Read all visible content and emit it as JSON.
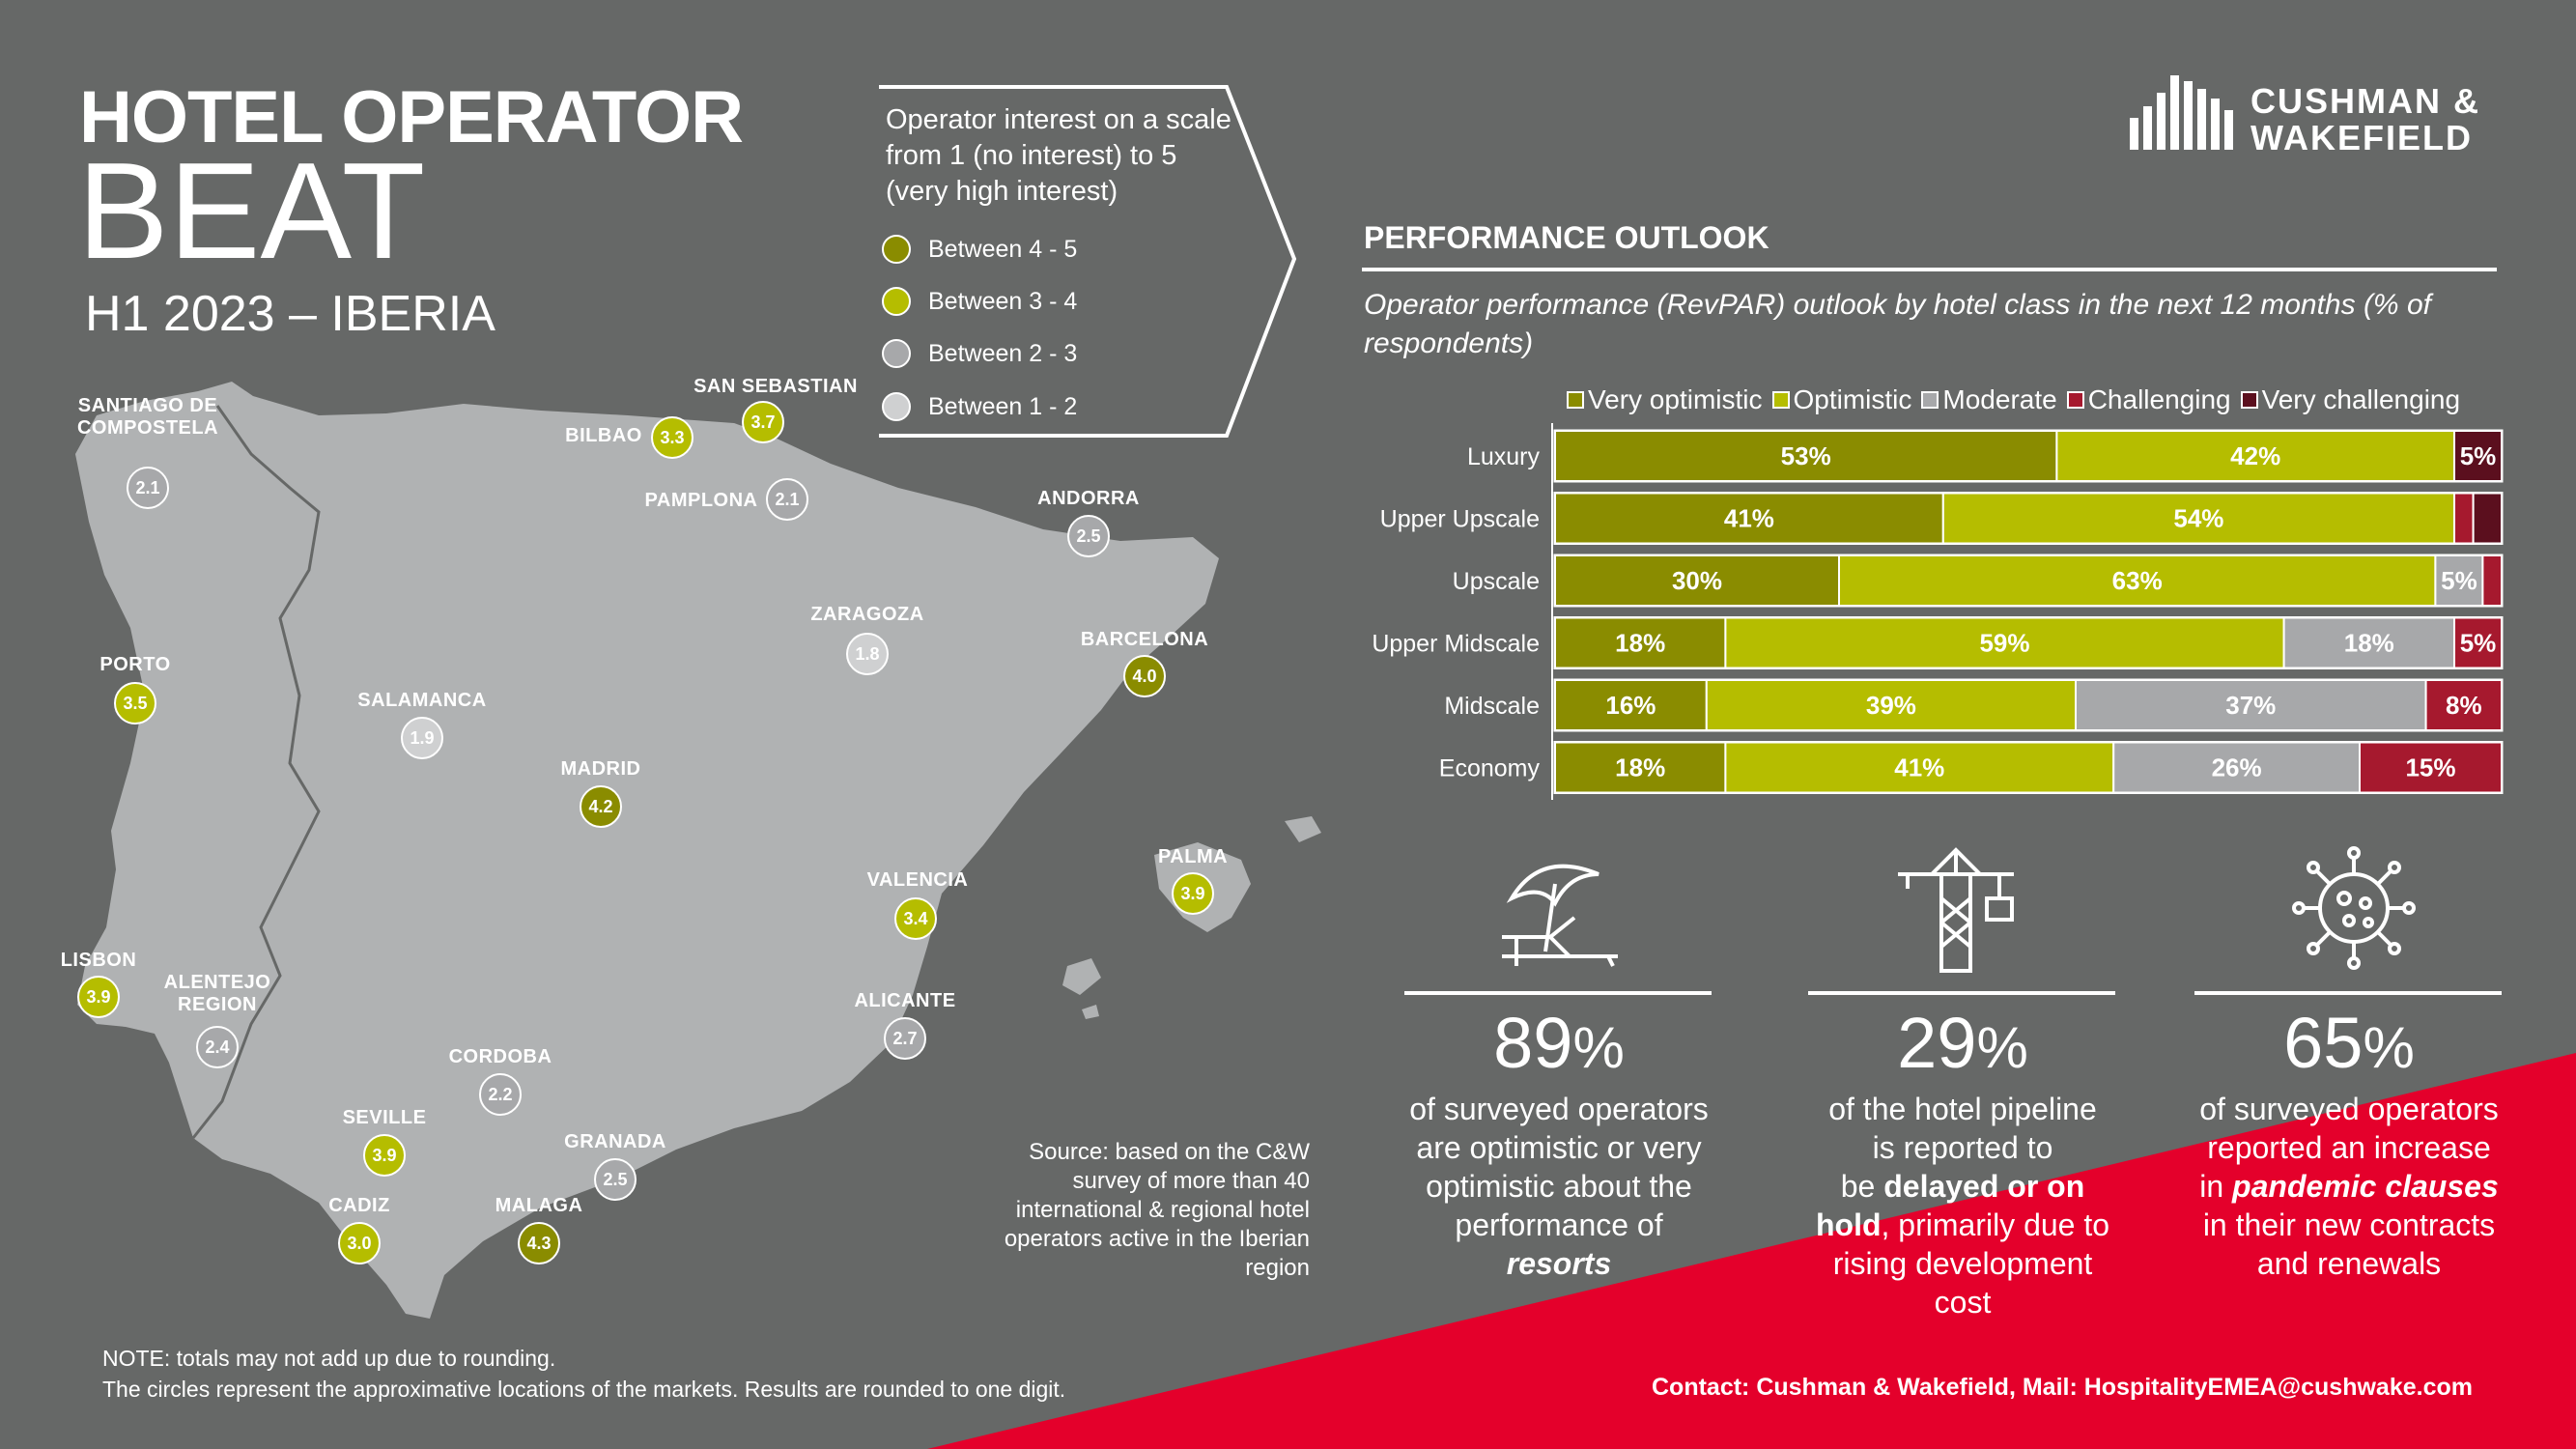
{
  "header": {
    "title_line1": "HOTEL OPERATOR",
    "title_line2": "BEAT",
    "title_line3": "H1 2023 – IBERIA"
  },
  "legend": {
    "intro": "Operator interest on a scale from 1 (no interest) to 5 (very high interest)",
    "items": [
      {
        "label": "Between 4 - 5",
        "color": "#8a8c00"
      },
      {
        "label": "Between 3 - 4",
        "color": "#b5bd00"
      },
      {
        "label": "Between 2 - 3",
        "color": "#a7a8aa"
      },
      {
        "label": "Between 1 - 2",
        "color": "#cfd0d1"
      }
    ]
  },
  "map": {
    "land_color": "#b0b2b3",
    "cities": [
      {
        "name": "SANTIAGO DE COMPOSTELA",
        "value": "2.1"
      },
      {
        "name": "BILBAO",
        "value": "3.3"
      },
      {
        "name": "SAN SEBASTIAN",
        "value": "3.7"
      },
      {
        "name": "PAMPLONA",
        "value": "2.1"
      },
      {
        "name": "ANDORRA",
        "value": "2.5"
      },
      {
        "name": "ZARAGOZA",
        "value": "1.8"
      },
      {
        "name": "BARCELONA",
        "value": "4.0"
      },
      {
        "name": "PORTO",
        "value": "3.5"
      },
      {
        "name": "SALAMANCA",
        "value": "1.9"
      },
      {
        "name": "MADRID",
        "value": "4.2"
      },
      {
        "name": "PALMA",
        "value": "3.9"
      },
      {
        "name": "VALENCIA",
        "value": "3.4"
      },
      {
        "name": "LISBON",
        "value": "3.9"
      },
      {
        "name": "ALENTEJO REGION",
        "value": "2.4"
      },
      {
        "name": "ALICANTE",
        "value": "2.7"
      },
      {
        "name": "CORDOBA",
        "value": "2.2"
      },
      {
        "name": "SEVILLE",
        "value": "3.9"
      },
      {
        "name": "GRANADA",
        "value": "2.5"
      },
      {
        "name": "CADIZ",
        "value": "3.0"
      },
      {
        "name": "MALAGA",
        "value": "4.3"
      }
    ]
  },
  "logo": {
    "line1": "CUSHMAN &",
    "line2": "WAKEFIELD"
  },
  "outlook": {
    "heading": "PERFORMANCE OUTLOOK",
    "subtitle": "Operator performance (RevPAR) outlook by hotel class in the next 12 months (% of respondents)"
  },
  "chart_data": {
    "type": "bar",
    "orientation": "horizontal",
    "stacked": true,
    "unit": "%",
    "categories": [
      "Luxury",
      "Upper Upscale",
      "Upscale",
      "Upper Midscale",
      "Midscale",
      "Economy"
    ],
    "series": [
      {
        "name": "Very optimistic",
        "color": "#8a8c00",
        "values": [
          53,
          41,
          30,
          18,
          16,
          18
        ]
      },
      {
        "name": "Optimistic",
        "color": "#b5bd00",
        "values": [
          42,
          54,
          63,
          59,
          39,
          41
        ]
      },
      {
        "name": "Moderate",
        "color": "#a7a8aa",
        "values": [
          0,
          0,
          5,
          18,
          37,
          26
        ]
      },
      {
        "name": "Challenging",
        "color": "#a6192e",
        "values": [
          0,
          2,
          2,
          5,
          8,
          15
        ]
      },
      {
        "name": "Very challenging",
        "color": "#5b0f1e",
        "values": [
          5,
          3,
          0,
          0,
          0,
          0
        ]
      }
    ],
    "data_labels": [
      [
        "53%",
        "42%",
        "",
        "",
        "5%"
      ],
      [
        "41%",
        "54%",
        "",
        "",
        ""
      ],
      [
        "30%",
        "63%",
        "5%",
        "",
        ""
      ],
      [
        "18%",
        "59%",
        "18%",
        "5%",
        ""
      ],
      [
        "16%",
        "39%",
        "37%",
        "8%",
        ""
      ],
      [
        "18%",
        "41%",
        "26%",
        "15%",
        ""
      ]
    ],
    "legend_position": "top",
    "grid": false
  },
  "stats": [
    {
      "number": "89",
      "pct": "%",
      "line1": "of surveyed operators",
      "line2": "are optimistic or very",
      "line3": "optimistic about the",
      "line4": "performance of",
      "line5": "resorts",
      "icon": "beach-umbrella-icon"
    },
    {
      "number": "29",
      "pct": "%",
      "line1": "of the hotel pipeline",
      "line2": "is reported to",
      "line3a": "be ",
      "line3b": "delayed or on",
      "line4a": "hold",
      "line4b": ", primarily due to",
      "line5": "rising development",
      "line6": "cost",
      "icon": "crane-icon"
    },
    {
      "number": "65",
      "pct": "%",
      "line1": "of surveyed operators",
      "line2": "reported an increase",
      "line3a": "in ",
      "line3b": "pandemic clauses",
      "line4": "in their new contracts",
      "line5": "and renewals",
      "icon": "virus-icon"
    }
  ],
  "footer": {
    "source": "Source: based on the C&W survey of more than 40 international & regional hotel operators active in the Iberian region",
    "note_line1": "NOTE: totals may not add up due to rounding.",
    "note_line2": "The circles represent the approximative locations of the markets. Results are rounded to one digit.",
    "contact": "Contact: Cushman & Wakefield, Mail: HospitalityEMEA@cushwake.com",
    "accent_color": "#e4002b"
  }
}
